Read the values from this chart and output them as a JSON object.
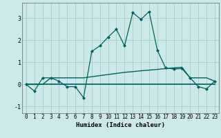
{
  "xlabel": "Humidex (Indice chaleur)",
  "background_color": "#cce8e8",
  "grid_color": "#aacece",
  "line_color": "#006060",
  "x_data": [
    0,
    1,
    2,
    3,
    4,
    5,
    6,
    7,
    8,
    9,
    10,
    11,
    12,
    13,
    14,
    15,
    16,
    17,
    18,
    19,
    20,
    21,
    22,
    23
  ],
  "line1_y": [
    0.0,
    -0.3,
    0.3,
    0.3,
    0.15,
    -0.1,
    -0.1,
    -0.6,
    1.5,
    1.75,
    2.15,
    2.5,
    1.75,
    3.25,
    2.95,
    3.3,
    1.55,
    0.75,
    0.7,
    0.72,
    0.3,
    -0.1,
    -0.2,
    0.15
  ],
  "line2_y": [
    0.0,
    0.0,
    0.0,
    0.3,
    0.3,
    0.3,
    0.3,
    0.3,
    0.35,
    0.4,
    0.45,
    0.5,
    0.55,
    0.58,
    0.62,
    0.65,
    0.68,
    0.72,
    0.75,
    0.78,
    0.3,
    0.3,
    0.3,
    0.15
  ],
  "line3_y": [
    0.0,
    0.0,
    0.0,
    0.0,
    0.0,
    0.0,
    0.0,
    0.0,
    0.0,
    0.0,
    0.0,
    0.0,
    0.0,
    0.0,
    0.0,
    0.0,
    0.0,
    0.0,
    0.0,
    0.0,
    0.0,
    0.0,
    0.0,
    0.0
  ],
  "ylim": [
    -1.3,
    3.7
  ],
  "xlim": [
    -0.5,
    23.5
  ],
  "yticks": [
    -1,
    0,
    1,
    2,
    3
  ],
  "xticks": [
    0,
    1,
    2,
    3,
    4,
    5,
    6,
    7,
    8,
    9,
    10,
    11,
    12,
    13,
    14,
    15,
    16,
    17,
    18,
    19,
    20,
    21,
    22,
    23
  ],
  "tick_fontsize": 5.5,
  "xlabel_fontsize": 6.5
}
